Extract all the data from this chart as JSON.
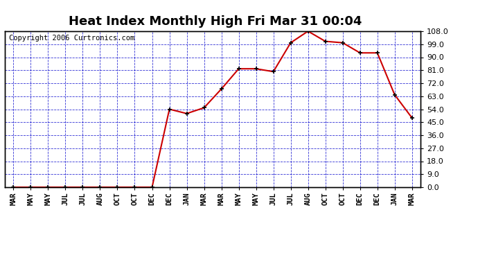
{
  "title": "Heat Index Monthly High Fri Mar 31 00:04",
  "copyright": "Copyright 2006 Curtronics.com",
  "x_labels": [
    "MAR",
    "MAY",
    "MAY",
    "JUL",
    "JUL",
    "AUG",
    "OCT",
    "OCT",
    "DEC",
    "DEC",
    "JAN",
    "MAR",
    "MAR",
    "MAY",
    "MAY",
    "JUL",
    "JUL",
    "AUG",
    "OCT",
    "OCT",
    "DEC",
    "DEC",
    "JAN",
    "MAR"
  ],
  "data_points": [
    [
      0,
      0.0
    ],
    [
      1,
      0.0
    ],
    [
      2,
      0.0
    ],
    [
      3,
      0.0
    ],
    [
      4,
      0.0
    ],
    [
      5,
      0.0
    ],
    [
      6,
      0.0
    ],
    [
      7,
      0.0
    ],
    [
      8,
      0.0
    ],
    [
      9,
      54.0
    ],
    [
      10,
      51.0
    ],
    [
      11,
      55.0
    ],
    [
      12,
      68.0
    ],
    [
      13,
      82.0
    ],
    [
      14,
      82.0
    ],
    [
      15,
      80.0
    ],
    [
      16,
      100.0
    ],
    [
      17,
      108.0
    ],
    [
      18,
      101.0
    ],
    [
      19,
      100.0
    ],
    [
      20,
      93.0
    ],
    [
      21,
      93.0
    ],
    [
      22,
      64.0
    ],
    [
      23,
      48.0
    ]
  ],
  "yticks": [
    0.0,
    9.0,
    18.0,
    27.0,
    36.0,
    45.0,
    54.0,
    63.0,
    72.0,
    81.0,
    90.0,
    99.0,
    108.0
  ],
  "ylim": [
    0,
    108
  ],
  "line_color": "#cc0000",
  "marker_color": "black",
  "bg_color": "#ffffff",
  "plot_bg": "#ffffff",
  "grid_color": "#0000cc",
  "border_color": "black",
  "title_fontsize": 13,
  "copyright_fontsize": 7.5
}
